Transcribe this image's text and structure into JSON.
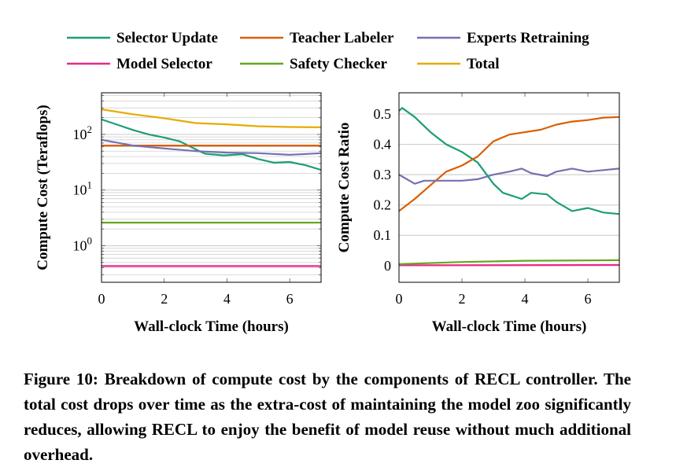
{
  "legend": [
    {
      "name": "Selector Update",
      "color": "#1b9e77"
    },
    {
      "name": "Teacher Labeler",
      "color": "#d95f02"
    },
    {
      "name": "Experts Retraining",
      "color": "#7570b3"
    },
    {
      "name": "Model Selector",
      "color": "#e7298a"
    },
    {
      "name": "Safety Checker",
      "color": "#66a61e"
    },
    {
      "name": "Total",
      "color": "#e6ab02"
    }
  ],
  "chart_data": [
    {
      "type": "line",
      "xlabel": "Wall-clock Time (hours)",
      "ylabel": "Compute Cost (Teraflops)",
      "yscale": "log",
      "xlim": [
        0,
        7
      ],
      "ylim": [
        0.22,
        560
      ],
      "xticks": [
        "0",
        "2",
        "4",
        "6"
      ],
      "yticks": [
        {
          "value": 1,
          "label": "10",
          "exp": "0"
        },
        {
          "value": 10,
          "label": "10",
          "exp": "1"
        },
        {
          "value": 100,
          "label": "10",
          "exp": "2"
        }
      ],
      "grid": true,
      "series": [
        {
          "name": "Selector Update",
          "x": [
            0,
            0.5,
            1,
            1.5,
            2,
            2.5,
            3,
            3.3,
            3.9,
            4.5,
            5,
            5.5,
            6,
            6.5,
            7
          ],
          "y": [
            186,
            150,
            120,
            100,
            88,
            75,
            54,
            45,
            42,
            44,
            36,
            31,
            32,
            28,
            23
          ]
        },
        {
          "name": "Teacher Labeler",
          "x": [
            0,
            7
          ],
          "y": [
            63,
            63
          ]
        },
        {
          "name": "Experts Retraining",
          "x": [
            0,
            1,
            2,
            3,
            4,
            5,
            6,
            7
          ],
          "y": [
            80,
            63,
            56,
            50,
            47,
            46,
            43,
            46
          ]
        },
        {
          "name": "Model Selector",
          "x": [
            0,
            7
          ],
          "y": [
            0.43,
            0.43
          ]
        },
        {
          "name": "Safety Checker",
          "x": [
            0,
            7
          ],
          "y": [
            2.6,
            2.6
          ]
        },
        {
          "name": "Total",
          "x": [
            0,
            1,
            2,
            3,
            4,
            5,
            6,
            7
          ],
          "y": [
            282,
            230,
            195,
            160,
            152,
            140,
            136,
            134
          ]
        }
      ]
    },
    {
      "type": "line",
      "xlabel": "Wall-clock Time (hours)",
      "ylabel": "Compute Cost Ratio",
      "xlim": [
        0,
        7
      ],
      "ylim": [
        -0.055,
        0.57
      ],
      "xticks": [
        "0",
        "2",
        "4",
        "6"
      ],
      "yticks": [
        "0",
        "0.1",
        "0.2",
        "0.3",
        "0.4",
        "0.5"
      ],
      "grid": true,
      "series": [
        {
          "name": "Selector Update",
          "x": [
            0,
            0.1,
            0.5,
            1,
            1.5,
            2,
            2.5,
            3,
            3.3,
            3.9,
            4.2,
            4.7,
            5,
            5.5,
            6,
            6.5,
            7
          ],
          "y": [
            0.51,
            0.52,
            0.49,
            0.44,
            0.4,
            0.375,
            0.34,
            0.27,
            0.24,
            0.22,
            0.24,
            0.235,
            0.21,
            0.18,
            0.19,
            0.175,
            0.17
          ]
        },
        {
          "name": "Teacher Labeler",
          "x": [
            0,
            0.5,
            1,
            1.5,
            2,
            2.5,
            3,
            3.5,
            4,
            4.5,
            5,
            5.5,
            6,
            6.5,
            7
          ],
          "y": [
            0.18,
            0.22,
            0.265,
            0.31,
            0.33,
            0.36,
            0.41,
            0.432,
            0.44,
            0.448,
            0.465,
            0.475,
            0.48,
            0.488,
            0.49
          ]
        },
        {
          "name": "Experts Retraining",
          "x": [
            0,
            0.5,
            0.8,
            1.5,
            2,
            2.5,
            3,
            3.5,
            3.9,
            4.2,
            4.7,
            5,
            5.5,
            6,
            6.5,
            7
          ],
          "y": [
            0.3,
            0.27,
            0.28,
            0.28,
            0.28,
            0.285,
            0.3,
            0.31,
            0.32,
            0.305,
            0.295,
            0.31,
            0.32,
            0.31,
            0.315,
            0.32
          ]
        },
        {
          "name": "Model Selector",
          "x": [
            0,
            7
          ],
          "y": [
            0.001,
            0.002
          ]
        },
        {
          "name": "Safety Checker",
          "x": [
            0,
            2,
            4,
            7
          ],
          "y": [
            0.005,
            0.012,
            0.016,
            0.018
          ]
        }
      ]
    }
  ],
  "caption": "Figure 10: Breakdown of compute cost by the components of RECL controller. The total cost drops over time as the extra-cost of maintaining the model zoo significantly reduces, allowing RECL to enjoy the benefit of model reuse without much additional overhead."
}
